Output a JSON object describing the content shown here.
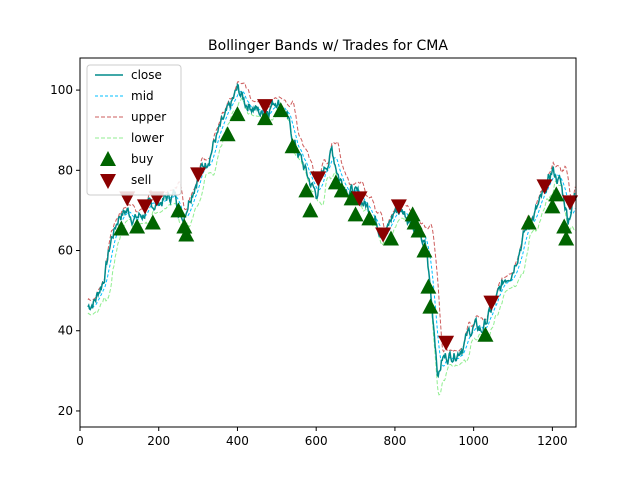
{
  "chart_data": {
    "type": "line",
    "title": "Bollinger Bands w/ Trades for CMA",
    "xlabel": "",
    "ylabel": "",
    "xlim": [
      0,
      1260
    ],
    "ylim": [
      16,
      108
    ],
    "xticks": [
      0,
      200,
      400,
      600,
      800,
      1000,
      1200
    ],
    "yticks": [
      20,
      40,
      60,
      80,
      100
    ],
    "grid": false,
    "legend_position": "top-left",
    "colors": {
      "close": "#008b8b",
      "mid": "#00bfff",
      "upper": "#cd5c5c",
      "lower": "#90ee90",
      "buy": "#006400",
      "sell": "#8b0000"
    },
    "anchors": {
      "x": [
        20,
        40,
        60,
        80,
        100,
        120,
        140,
        160,
        180,
        200,
        220,
        240,
        260,
        280,
        300,
        320,
        340,
        360,
        380,
        400,
        420,
        440,
        460,
        480,
        500,
        520,
        540,
        560,
        580,
        600,
        620,
        640,
        660,
        680,
        700,
        720,
        740,
        760,
        780,
        800,
        820,
        840,
        860,
        880,
        900,
        910,
        920,
        940,
        960,
        980,
        1000,
        1020,
        1040,
        1060,
        1080,
        1100,
        1120,
        1140,
        1160,
        1180,
        1200,
        1220,
        1240,
        1258
      ],
      "y": [
        46,
        48,
        53,
        63,
        69,
        70,
        68,
        69,
        71,
        72,
        73,
        74,
        68,
        74,
        79,
        82,
        87,
        91,
        95,
        100,
        97,
        96,
        94,
        96,
        98,
        95,
        88,
        83,
        78,
        74,
        80,
        85,
        78,
        76,
        74,
        72,
        70,
        66,
        65,
        70,
        70,
        68,
        64,
        60,
        40,
        29,
        33,
        34,
        35,
        38,
        41,
        40,
        44,
        48,
        53,
        56,
        62,
        67,
        70,
        74,
        80,
        77,
        68,
        74
      ]
    },
    "series": [
      {
        "name": "close"
      },
      {
        "name": "mid"
      },
      {
        "name": "upper"
      },
      {
        "name": "lower"
      }
    ],
    "buy": {
      "name": "buy",
      "points": [
        [
          105,
          65.5
        ],
        [
          145,
          66
        ],
        [
          185,
          67
        ],
        [
          250,
          70
        ],
        [
          265,
          66
        ],
        [
          270,
          64
        ],
        [
          375,
          89
        ],
        [
          400,
          94
        ],
        [
          470,
          93
        ],
        [
          510,
          95
        ],
        [
          540,
          86
        ],
        [
          575,
          75
        ],
        [
          585,
          70
        ],
        [
          650,
          77
        ],
        [
          665,
          75
        ],
        [
          690,
          73
        ],
        [
          700,
          69
        ],
        [
          735,
          68
        ],
        [
          790,
          63
        ],
        [
          845,
          69
        ],
        [
          850,
          67
        ],
        [
          860,
          65
        ],
        [
          875,
          60
        ],
        [
          885,
          51
        ],
        [
          890,
          46
        ],
        [
          1030,
          39
        ],
        [
          1140,
          67
        ],
        [
          1200,
          71
        ],
        [
          1210,
          74
        ],
        [
          1230,
          66
        ],
        [
          1235,
          63
        ]
      ]
    },
    "sell": {
      "name": "sell",
      "points": [
        [
          120,
          73
        ],
        [
          165,
          71
        ],
        [
          195,
          73
        ],
        [
          300,
          79
        ],
        [
          470,
          96
        ],
        [
          605,
          78
        ],
        [
          710,
          73
        ],
        [
          770,
          64
        ],
        [
          810,
          71
        ],
        [
          930,
          37
        ],
        [
          1045,
          47
        ],
        [
          1180,
          76
        ],
        [
          1245,
          72
        ]
      ]
    },
    "legend": [
      "close",
      "mid",
      "upper",
      "lower",
      "buy",
      "sell"
    ]
  }
}
